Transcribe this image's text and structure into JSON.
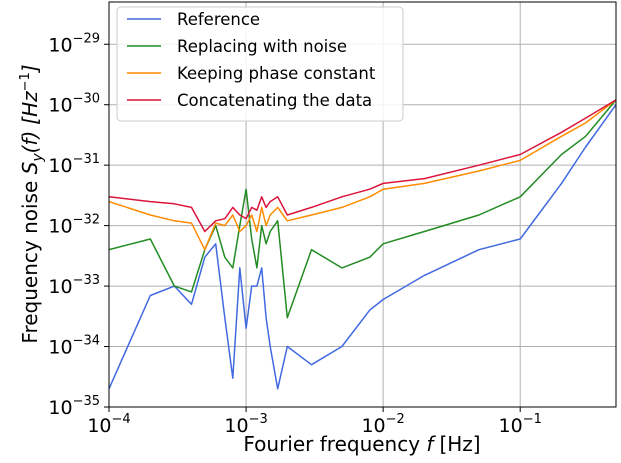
{
  "chart_data": {
    "type": "line",
    "xlabel": {
      "text": "Fourier frequency ",
      "var": "f",
      "unit": "[Hz]"
    },
    "ylabel": {
      "text": "Frequency noise ",
      "var": "S",
      "sub": "y",
      "arg": "(f)",
      "unit": "[Hz",
      "unit_sup": "−1",
      "unit_close": "]"
    },
    "x_scale": "log",
    "y_scale": "log",
    "xlim": [
      0.0001,
      0.5
    ],
    "ylim": [
      1e-35,
      5e-29
    ],
    "grid": true,
    "legend_position": "top-left",
    "x_ticks": [
      {
        "exp": -4,
        "base": "10",
        "sup": "−4"
      },
      {
        "exp": -3,
        "base": "10",
        "sup": "−3"
      },
      {
        "exp": -2,
        "base": "10",
        "sup": "−2"
      },
      {
        "exp": -1,
        "base": "10",
        "sup": "−1"
      }
    ],
    "y_ticks": [
      {
        "exp": -35,
        "base": "10",
        "sup": "−35"
      },
      {
        "exp": -34,
        "base": "10",
        "sup": "−34"
      },
      {
        "exp": -33,
        "base": "10",
        "sup": "−33"
      },
      {
        "exp": -32,
        "base": "10",
        "sup": "−32"
      },
      {
        "exp": -31,
        "base": "10",
        "sup": "−31"
      },
      {
        "exp": -30,
        "base": "10",
        "sup": "−30"
      },
      {
        "exp": -29,
        "base": "10",
        "sup": "−29"
      }
    ],
    "series": [
      {
        "name": "Reference",
        "color": "#4169e1",
        "x": [
          0.0001,
          0.0002,
          0.0003,
          0.0004,
          0.0005,
          0.0006,
          0.0007,
          0.0008,
          0.0009,
          0.001,
          0.0011,
          0.0012,
          0.0013,
          0.0014,
          0.0015,
          0.0017,
          0.002,
          0.003,
          0.005,
          0.008,
          0.01,
          0.02,
          0.05,
          0.1,
          0.2,
          0.3,
          0.5
        ],
        "y": [
          2e-35,
          7e-34,
          1e-33,
          5e-34,
          3e-33,
          5e-33,
          3e-34,
          3e-35,
          2e-33,
          2e-34,
          1e-33,
          1e-33,
          2e-33,
          3e-34,
          1e-34,
          2e-35,
          1e-34,
          5e-35,
          1e-34,
          4e-34,
          6e-34,
          1.5e-33,
          4e-33,
          6e-33,
          5e-32,
          2e-31,
          1e-30
        ]
      },
      {
        "name": "Replacing with noise",
        "color": "#228b22",
        "x": [
          0.0001,
          0.0002,
          0.0003,
          0.0004,
          0.0005,
          0.0006,
          0.0007,
          0.0008,
          0.0009,
          0.001,
          0.0011,
          0.0012,
          0.0013,
          0.0014,
          0.0015,
          0.0017,
          0.002,
          0.003,
          0.005,
          0.008,
          0.01,
          0.02,
          0.05,
          0.1,
          0.2,
          0.3,
          0.5
        ],
        "y": [
          4e-33,
          6e-33,
          1e-33,
          8e-34,
          4e-33,
          1e-32,
          3e-33,
          2e-33,
          1e-32,
          4e-32,
          6e-33,
          2e-33,
          1e-32,
          5e-33,
          8e-33,
          1.2e-32,
          3e-34,
          4e-33,
          2e-33,
          3e-33,
          5e-33,
          8e-33,
          1.5e-32,
          3e-32,
          1.5e-31,
          3e-31,
          1.2e-30
        ]
      },
      {
        "name": "Keeping phase constant",
        "color": "#ff8c00",
        "x": [
          0.0001,
          0.0002,
          0.0003,
          0.0004,
          0.0005,
          0.0006,
          0.0007,
          0.0008,
          0.0009,
          0.001,
          0.0011,
          0.0012,
          0.0013,
          0.0014,
          0.0015,
          0.0017,
          0.002,
          0.003,
          0.005,
          0.008,
          0.01,
          0.02,
          0.05,
          0.1,
          0.2,
          0.3,
          0.5
        ],
        "y": [
          2.5e-32,
          1.5e-32,
          1.2e-32,
          1.1e-32,
          4e-33,
          1.1e-32,
          1e-32,
          1.5e-32,
          8e-33,
          1e-32,
          1.5e-32,
          8e-33,
          2e-32,
          1e-32,
          1.5e-32,
          2e-32,
          1.2e-32,
          1.5e-32,
          2e-32,
          3e-32,
          4e-32,
          5e-32,
          8e-32,
          1.2e-31,
          3e-31,
          5e-31,
          1.2e-30
        ]
      },
      {
        "name": "Concatenating the data",
        "color": "#dc143c",
        "x": [
          0.0001,
          0.0002,
          0.0003,
          0.0004,
          0.0005,
          0.0006,
          0.0007,
          0.0008,
          0.0009,
          0.001,
          0.0011,
          0.0012,
          0.0013,
          0.0014,
          0.0015,
          0.0017,
          0.002,
          0.003,
          0.005,
          0.008,
          0.01,
          0.02,
          0.05,
          0.1,
          0.2,
          0.3,
          0.5
        ],
        "y": [
          3e-32,
          2.5e-32,
          2.3e-32,
          2e-32,
          8e-33,
          1.2e-32,
          1.3e-32,
          2e-32,
          1.5e-32,
          1.3e-32,
          2e-32,
          1.8e-32,
          3e-32,
          2e-32,
          2.5e-32,
          3e-32,
          1.5e-32,
          2e-32,
          3e-32,
          4e-32,
          5e-32,
          6e-32,
          1e-31,
          1.5e-31,
          3.5e-31,
          6e-31,
          1.2e-30
        ]
      }
    ]
  }
}
